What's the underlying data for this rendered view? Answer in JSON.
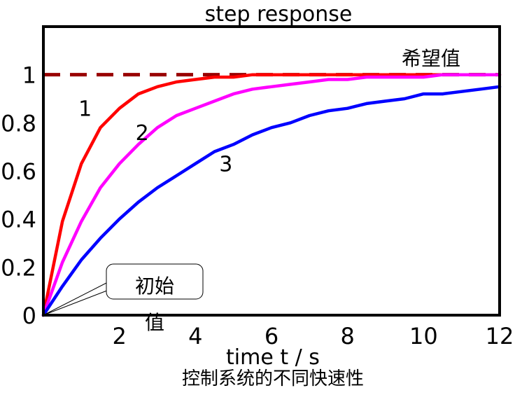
{
  "chart_data": {
    "type": "line",
    "title": "step response",
    "xlabel": "time  t / s",
    "ylabel": "",
    "caption": "控制系统的不同快速性",
    "xlim": [
      0,
      12
    ],
    "ylim": [
      0,
      1.2
    ],
    "x_ticks": [
      2,
      4,
      6,
      8,
      10,
      12
    ],
    "y_ticks": [
      0,
      0.2,
      0.4,
      0.6,
      0.8,
      1
    ],
    "x_tick_labels": [
      "2",
      "4",
      "6",
      "8",
      "10",
      "12"
    ],
    "y_tick_labels": [
      "0",
      "0.2",
      "0.4",
      "0.6",
      "0.8",
      "1"
    ],
    "grid": false,
    "x": [
      0,
      0.5,
      1,
      1.5,
      2,
      2.5,
      3,
      3.5,
      4,
      4.5,
      5,
      5.5,
      6,
      6.5,
      7,
      7.5,
      8,
      8.5,
      9,
      9.5,
      10,
      10.5,
      11,
      11.5,
      12
    ],
    "series": [
      {
        "name": "1",
        "color": "#ff0000",
        "values": [
          0,
          0.39,
          0.63,
          0.78,
          0.86,
          0.92,
          0.95,
          0.97,
          0.98,
          0.99,
          0.99,
          1.0,
          1.0,
          1.0,
          1.0,
          1.0,
          1.0,
          1.0,
          1.0,
          1.0,
          1.0,
          1.0,
          1.0,
          1.0,
          1.0
        ]
      },
      {
        "name": "2",
        "color": "#ff00ff",
        "values": [
          0,
          0.22,
          0.39,
          0.53,
          0.63,
          0.71,
          0.78,
          0.83,
          0.86,
          0.89,
          0.92,
          0.94,
          0.95,
          0.96,
          0.97,
          0.98,
          0.98,
          0.99,
          0.99,
          0.99,
          0.99,
          1.0,
          1.0,
          1.0,
          1.0
        ]
      },
      {
        "name": "3",
        "color": "#0000ff",
        "values": [
          0,
          0.12,
          0.23,
          0.32,
          0.4,
          0.47,
          0.53,
          0.58,
          0.63,
          0.68,
          0.71,
          0.75,
          0.78,
          0.8,
          0.83,
          0.85,
          0.86,
          0.88,
          0.89,
          0.9,
          0.92,
          0.92,
          0.93,
          0.94,
          0.95
        ]
      }
    ],
    "reference_line": {
      "label": "希望值",
      "value": 1,
      "style": "dashed",
      "color": "#990000"
    },
    "annotations": [
      {
        "text": "初始值",
        "points_to": [
          0,
          0
        ]
      }
    ]
  }
}
